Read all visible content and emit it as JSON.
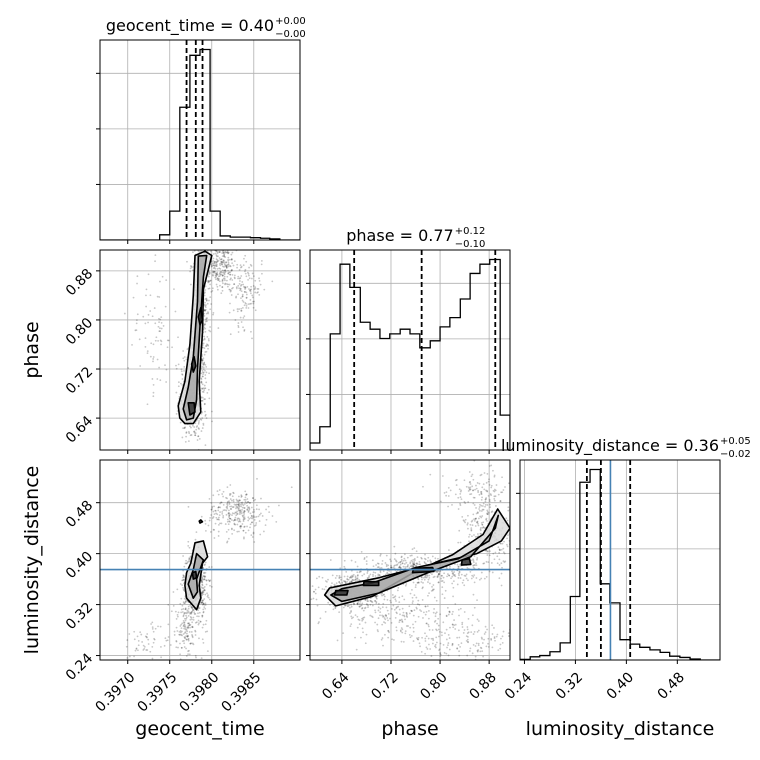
{
  "chart_data": {
    "type": "corner",
    "parameters": [
      "geocent_time",
      "phase",
      "luminosity_distance"
    ],
    "axis_labels": {
      "geocent_time": "geocent_time",
      "phase": "phase",
      "luminosity_distance": "luminosity_distance"
    },
    "ranges": {
      "geocent_time": [
        0.39667,
        0.39905
      ],
      "phase": [
        0.588,
        0.914
      ],
      "luminosity_distance": [
        0.233,
        0.547
      ]
    },
    "ticks": {
      "geocent_time": [
        "0.3970",
        "0.3975",
        "0.3980",
        "0.3985"
      ],
      "phase": [
        "0.64",
        "0.72",
        "0.80",
        "0.88"
      ],
      "luminosity_distance": [
        "0.24",
        "0.32",
        "0.40",
        "0.48"
      ]
    },
    "titles": [
      {
        "param": "geocent_time",
        "name": "geocent_time",
        "value": "0.40",
        "plus": "+0.00",
        "minus": "−0.00"
      },
      {
        "param": "phase",
        "name": "phase",
        "value": "0.77",
        "plus": "+0.12",
        "minus": "−0.10"
      },
      {
        "param": "luminosity_distance",
        "name": "luminosity_distance",
        "value": "0.36",
        "plus": "+0.05",
        "minus": "−0.02"
      }
    ],
    "quantiles": {
      "geocent_time": [
        0.3977,
        0.39781,
        0.39789
      ],
      "phase": [
        0.66,
        0.77,
        0.89
      ],
      "luminosity_distance": [
        0.338,
        0.36,
        0.406
      ]
    },
    "truths": {
      "luminosity_distance": 0.375
    },
    "histograms": {
      "geocent_time": {
        "edges": [
          0.39667,
          0.39679,
          0.39691,
          0.39703,
          0.39714,
          0.39726,
          0.39738,
          0.3975,
          0.39762,
          0.39774,
          0.39786,
          0.39798,
          0.3981,
          0.39822,
          0.39834,
          0.39846,
          0.39858,
          0.39869,
          0.39881,
          0.39893,
          0.39905
        ],
        "counts": [
          0,
          0,
          0,
          0,
          0,
          0,
          0.9,
          5,
          23,
          32,
          33,
          5,
          0.7,
          0.5,
          0.5,
          0.4,
          0.3,
          0.2,
          0,
          0
        ]
      },
      "phase": {
        "edges": [
          0.588,
          0.604,
          0.621,
          0.637,
          0.653,
          0.67,
          0.686,
          0.702,
          0.718,
          0.735,
          0.751,
          0.767,
          0.784,
          0.8,
          0.816,
          0.833,
          0.849,
          0.865,
          0.881,
          0.898,
          0.914
        ],
        "counts": [
          0.3,
          1.0,
          5.0,
          8.0,
          7.0,
          5.5,
          5.2,
          4.8,
          5.0,
          5.2,
          5.0,
          4.4,
          4.7,
          5.3,
          5.7,
          6.5,
          7.6,
          8.0,
          8.2,
          1.5
        ]
      },
      "luminosity_distance": {
        "edges": [
          0.233,
          0.249,
          0.264,
          0.28,
          0.296,
          0.312,
          0.327,
          0.343,
          0.359,
          0.374,
          0.39,
          0.406,
          0.421,
          0.437,
          0.453,
          0.468,
          0.484,
          0.5,
          0.516,
          0.531,
          0.547
        ],
        "counts": [
          0.1,
          0.5,
          0.7,
          1.3,
          2.7,
          10,
          28,
          30,
          12,
          9,
          3.2,
          2.5,
          2.0,
          1.6,
          1.2,
          0.6,
          0.4,
          0.15,
          0,
          0
        ]
      }
    },
    "contours": {
      "phase_vs_geocent_time": [
        [
          [
            0.39768,
            0.631
          ],
          [
            0.39778,
            0.631
          ],
          [
            0.39787,
            0.65
          ],
          [
            0.39785,
            0.7
          ],
          [
            0.39789,
            0.78
          ],
          [
            0.3979,
            0.85
          ],
          [
            0.398,
            0.905
          ],
          [
            0.39792,
            0.912
          ],
          [
            0.3978,
            0.905
          ],
          [
            0.39778,
            0.84
          ],
          [
            0.39774,
            0.76
          ],
          [
            0.39768,
            0.7
          ],
          [
            0.3976,
            0.66
          ],
          [
            0.39762,
            0.64
          ]
        ],
        [
          [
            0.3977,
            0.637
          ],
          [
            0.39778,
            0.64
          ],
          [
            0.39782,
            0.67
          ],
          [
            0.39783,
            0.72
          ],
          [
            0.39786,
            0.79
          ],
          [
            0.3979,
            0.87
          ],
          [
            0.39794,
            0.905
          ],
          [
            0.39784,
            0.904
          ],
          [
            0.39783,
            0.83
          ],
          [
            0.39778,
            0.74
          ],
          [
            0.39772,
            0.69
          ],
          [
            0.39766,
            0.655
          ]
        ],
        [
          [
            0.39774,
            0.645
          ],
          [
            0.3978,
            0.65
          ],
          [
            0.39779,
            0.665
          ],
          [
            0.39772,
            0.665
          ]
        ],
        [
          [
            0.39786,
            0.792
          ],
          [
            0.39789,
            0.8
          ],
          [
            0.39787,
            0.82
          ],
          [
            0.39784,
            0.805
          ]
        ],
        [
          [
            0.39778,
            0.715
          ],
          [
            0.39781,
            0.725
          ],
          [
            0.39779,
            0.74
          ],
          [
            0.39776,
            0.728
          ]
        ]
      ],
      "luminosity_distance_vs_geocent_time": [
        [
          [
            0.39768,
            0.35
          ],
          [
            0.3977,
            0.33
          ],
          [
            0.39782,
            0.312
          ],
          [
            0.39787,
            0.33
          ],
          [
            0.39785,
            0.35
          ],
          [
            0.39789,
            0.385
          ],
          [
            0.39795,
            0.395
          ],
          [
            0.3979,
            0.42
          ],
          [
            0.3978,
            0.417
          ],
          [
            0.39775,
            0.385
          ],
          [
            0.3977,
            0.37
          ]
        ],
        [
          [
            0.39772,
            0.352
          ],
          [
            0.39778,
            0.33
          ],
          [
            0.39783,
            0.34
          ],
          [
            0.39782,
            0.36
          ],
          [
            0.3979,
            0.39
          ],
          [
            0.39782,
            0.4
          ],
          [
            0.39778,
            0.375
          ]
        ],
        [
          [
            0.39778,
            0.36
          ],
          [
            0.39782,
            0.362
          ],
          [
            0.39781,
            0.372
          ],
          [
            0.39777,
            0.37
          ]
        ],
        [
          [
            0.39786,
            0.448
          ],
          [
            0.39789,
            0.45
          ],
          [
            0.39787,
            0.453
          ],
          [
            0.39785,
            0.451
          ]
        ]
      ],
      "luminosity_distance_vs_phase": [
        [
          [
            0.612,
            0.335
          ],
          [
            0.63,
            0.318
          ],
          [
            0.69,
            0.333
          ],
          [
            0.76,
            0.372
          ],
          [
            0.82,
            0.398
          ],
          [
            0.87,
            0.43
          ],
          [
            0.894,
            0.47
          ],
          [
            0.914,
            0.44
          ],
          [
            0.9,
            0.42
          ],
          [
            0.86,
            0.4
          ],
          [
            0.78,
            0.382
          ],
          [
            0.7,
            0.362
          ],
          [
            0.65,
            0.352
          ],
          [
            0.62,
            0.346
          ]
        ],
        [
          [
            0.622,
            0.335
          ],
          [
            0.64,
            0.325
          ],
          [
            0.7,
            0.338
          ],
          [
            0.78,
            0.37
          ],
          [
            0.85,
            0.395
          ],
          [
            0.89,
            0.44
          ],
          [
            0.895,
            0.46
          ],
          [
            0.88,
            0.42
          ],
          [
            0.83,
            0.392
          ],
          [
            0.76,
            0.378
          ],
          [
            0.69,
            0.354
          ],
          [
            0.64,
            0.345
          ]
        ],
        [
          [
            0.628,
            0.335
          ],
          [
            0.648,
            0.335
          ],
          [
            0.65,
            0.342
          ],
          [
            0.63,
            0.342
          ]
        ],
        [
          [
            0.675,
            0.35
          ],
          [
            0.7,
            0.35
          ],
          [
            0.7,
            0.356
          ],
          [
            0.676,
            0.356
          ]
        ],
        [
          [
            0.755,
            0.37
          ],
          [
            0.79,
            0.372
          ],
          [
            0.788,
            0.378
          ],
          [
            0.757,
            0.377
          ]
        ],
        [
          [
            0.835,
            0.382
          ],
          [
            0.85,
            0.383
          ],
          [
            0.848,
            0.392
          ],
          [
            0.836,
            0.39
          ]
        ]
      ]
    },
    "scatter_clouds": {
      "phase_vs_geocent_time": [
        {
          "x": 0.39778,
          "y": 0.68,
          "sx": 8e-05,
          "sy": 0.04,
          "n": 500
        },
        {
          "x": 0.39787,
          "y": 0.82,
          "sx": 5e-05,
          "sy": 0.06,
          "n": 400
        },
        {
          "x": 0.39808,
          "y": 0.89,
          "sx": 0.00012,
          "sy": 0.02,
          "n": 300
        },
        {
          "x": 0.3984,
          "y": 0.85,
          "sx": 0.0001,
          "sy": 0.03,
          "n": 150
        },
        {
          "x": 0.3973,
          "y": 0.78,
          "sx": 0.00015,
          "sy": 0.05,
          "n": 80
        }
      ],
      "luminosity_distance_vs_geocent_time": [
        {
          "x": 0.3978,
          "y": 0.35,
          "sx": 7e-05,
          "sy": 0.025,
          "n": 600
        },
        {
          "x": 0.3983,
          "y": 0.465,
          "sx": 0.00018,
          "sy": 0.018,
          "n": 300
        },
        {
          "x": 0.3977,
          "y": 0.28,
          "sx": 0.0001,
          "sy": 0.025,
          "n": 150
        },
        {
          "x": 0.3972,
          "y": 0.26,
          "sx": 0.00015,
          "sy": 0.015,
          "n": 50
        }
      ],
      "luminosity_distance_vs_phase": [
        {
          "x": 0.66,
          "y": 0.34,
          "sx": 0.03,
          "sy": 0.012,
          "n": 500
        },
        {
          "x": 0.77,
          "y": 0.375,
          "sx": 0.05,
          "sy": 0.012,
          "n": 500
        },
        {
          "x": 0.88,
          "y": 0.43,
          "sx": 0.02,
          "sy": 0.025,
          "n": 300
        },
        {
          "x": 0.74,
          "y": 0.3,
          "sx": 0.06,
          "sy": 0.02,
          "n": 250
        },
        {
          "x": 0.84,
          "y": 0.26,
          "sx": 0.05,
          "sy": 0.015,
          "n": 150
        },
        {
          "x": 0.86,
          "y": 0.5,
          "sx": 0.03,
          "sy": 0.015,
          "n": 120
        }
      ]
    },
    "grid": true,
    "colors": {
      "hist": "#000000",
      "truth": "#4682b4",
      "grid": "#b0b0b0",
      "contour_fill": "#808080"
    }
  }
}
